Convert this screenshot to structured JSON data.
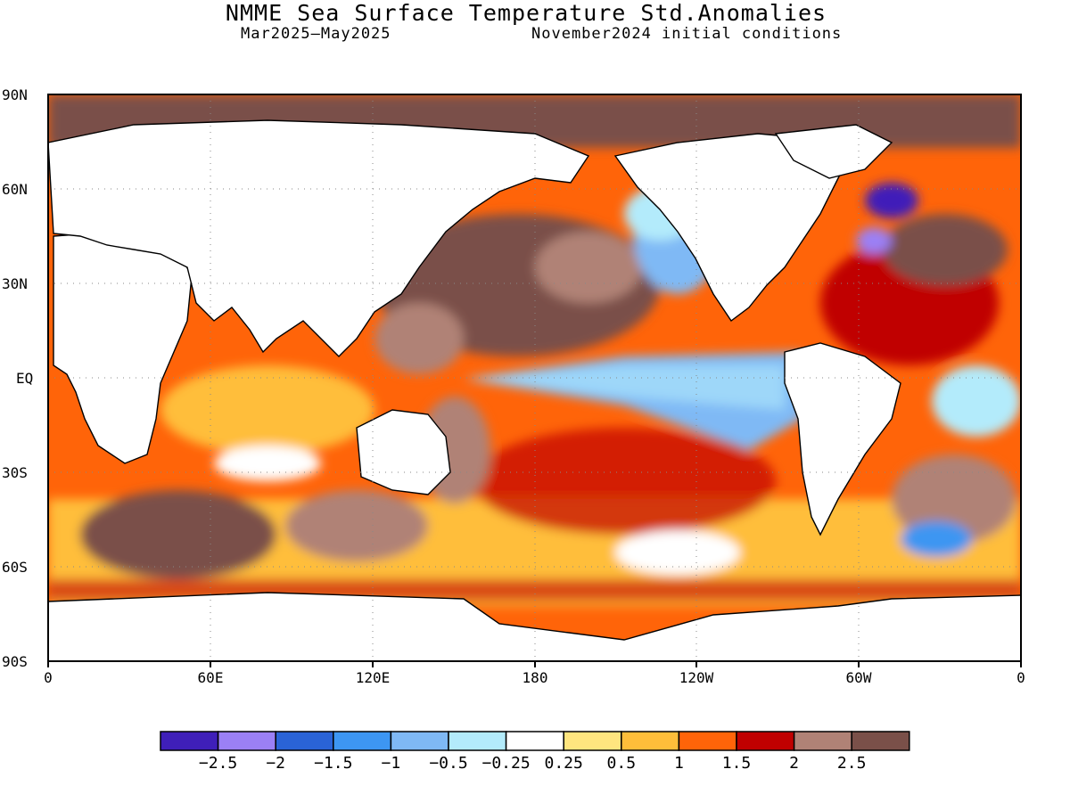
{
  "title": "NMME Sea Surface Temperature Std.Anomalies",
  "subtitle_left": "Mar2025–May2025",
  "subtitle_right": "November2024 initial conditions",
  "lat_labels": [
    "90N",
    "60N",
    "30N",
    "EQ",
    "30S",
    "60S",
    "90S"
  ],
  "lon_labels": [
    "0",
    "60E",
    "120E",
    "180",
    "120W",
    "60W",
    "0"
  ],
  "colorbar": {
    "colors": [
      "#3f1fb9",
      "#9b80f5",
      "#2a63d6",
      "#3d96f2",
      "#7fb9f5",
      "#b3ebfb",
      "#ffffff",
      "#ffe57f",
      "#ffbe3a",
      "#ff6409",
      "#c00000",
      "#b08276",
      "#7a5049"
    ],
    "labels": [
      "−2.5",
      "−2",
      "−1.5",
      "−1",
      "−0.5",
      "−0.25",
      "0.25",
      "0.5",
      "1",
      "1.5",
      "2",
      "2.5"
    ]
  }
}
